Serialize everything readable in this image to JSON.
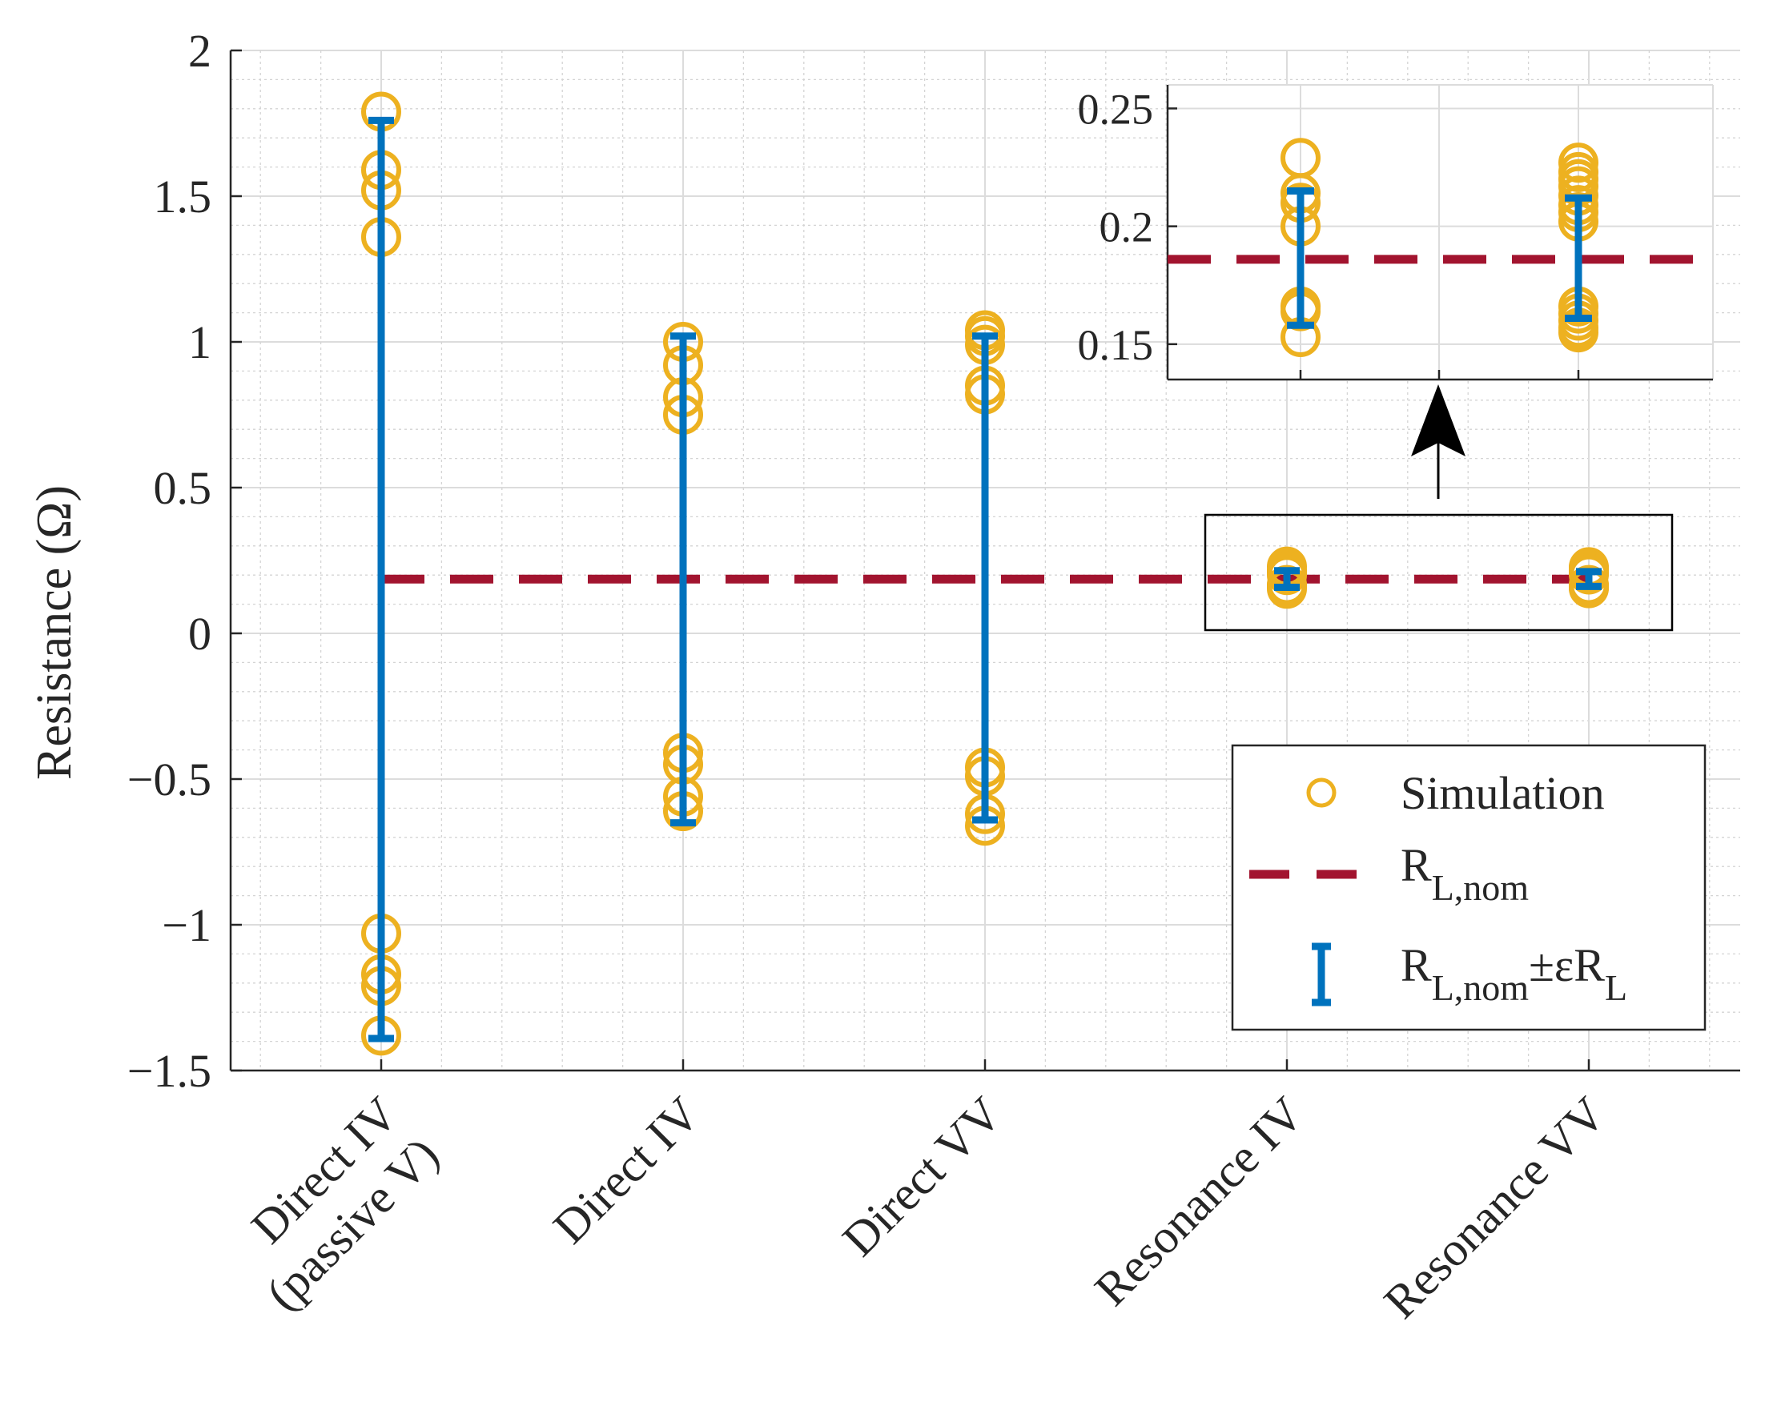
{
  "chart_data": {
    "type": "scatter",
    "ylabel": "Resistance (Ω)",
    "ylim": [
      -1.5,
      2
    ],
    "yticks": [
      "2",
      "1.5",
      "1",
      "0.5",
      "0",
      "−0.5",
      "−1",
      "−1.5"
    ],
    "ytick_values": [
      2,
      1.5,
      1,
      0.5,
      0,
      -0.5,
      -1,
      -1.5
    ],
    "categories": [
      [
        "Direct IV",
        "(passive V)"
      ],
      [
        "Direct IV"
      ],
      [
        "Direct VV"
      ],
      [
        "Resonance IV"
      ],
      [
        "Resonance VV"
      ]
    ],
    "grid": true,
    "nominal_value": 0.186,
    "series": [
      {
        "name": "Simulation",
        "marker": "circle",
        "color": "#EDB120",
        "points": [
          [
            [
              1.79,
              1.59,
              1.52,
              1.36,
              -1.03,
              -1.17,
              -1.21,
              -1.38
            ]
          ],
          [
            [
              1.0,
              0.92,
              0.81,
              0.75,
              -0.41,
              -0.45,
              -0.56,
              -0.61
            ]
          ],
          [
            [
              1.04,
              1.02,
              0.99,
              0.85,
              0.82,
              -0.46,
              -0.49,
              -0.62,
              -0.66
            ]
          ],
          [
            [
              0.229,
              0.214,
              0.21,
              0.2,
              0.166,
              0.164,
              0.153
            ]
          ],
          [
            [
              0.227,
              0.223,
              0.22,
              0.217,
              0.213,
              0.209,
              0.206,
              0.202,
              0.166,
              0.163,
              0.16,
              0.157,
              0.155
            ]
          ]
        ]
      },
      {
        "name": "R_L,nom",
        "style": "dashed-line",
        "color": "#A2142F"
      },
      {
        "name": "R_L,nom ± εR_L",
        "style": "errorbar",
        "color": "#0072BD",
        "ranges": [
          [
            -1.39,
            1.76
          ],
          [
            -0.65,
            1.02
          ],
          [
            -0.64,
            1.02
          ],
          [
            0.158,
            0.215
          ],
          [
            0.161,
            0.212
          ]
        ]
      }
    ],
    "legend": {
      "placement": "bottom-right",
      "entries": [
        {
          "label": "Simulation"
        },
        {
          "label": "R",
          "sub": "L,nom"
        },
        {
          "label": "R",
          "sub": "L,nom",
          "mid": "±εR",
          "sub2": "L"
        }
      ]
    },
    "inset": {
      "placement": "top-right",
      "ylim": [
        0.135,
        0.26
      ],
      "yticks": [
        "0.25",
        "0.2",
        "0.15"
      ],
      "ytick_values": [
        0.25,
        0.2,
        0.15
      ],
      "categories": [
        "Resonance IV",
        "Resonance VV"
      ],
      "annotation": "zoom arrow from highlighted box"
    }
  }
}
